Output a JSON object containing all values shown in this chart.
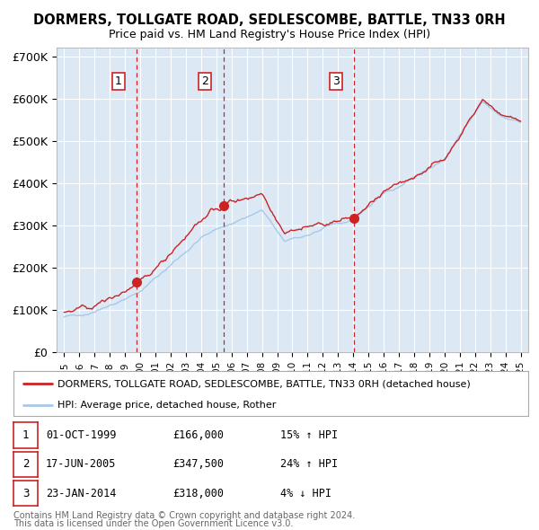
{
  "title": "DORMERS, TOLLGATE ROAD, SEDLESCOMBE, BATTLE, TN33 0RH",
  "subtitle": "Price paid vs. HM Land Registry's House Price Index (HPI)",
  "ylim": [
    0,
    720000
  ],
  "yticks": [
    0,
    100000,
    200000,
    300000,
    400000,
    500000,
    600000,
    700000
  ],
  "ytick_labels": [
    "£0",
    "£100K",
    "£200K",
    "£300K",
    "£400K",
    "£500K",
    "£600K",
    "£700K"
  ],
  "xlim_start": 1994.5,
  "xlim_end": 2025.5,
  "background_color": "#dce9f5",
  "grid_color": "#ffffff",
  "hpi_color": "#a8c8e8",
  "price_color": "#cc2222",
  "sale_dot_color": "#cc2222",
  "vline_color": "#cc2222",
  "sale_dates_year": [
    1999.75,
    2005.46,
    2014.06
  ],
  "sale_prices": [
    166000,
    347500,
    318000
  ],
  "sale_labels": [
    "1",
    "2",
    "3"
  ],
  "legend_price_label": "DORMERS, TOLLGATE ROAD, SEDLESCOMBE, BATTLE, TN33 0RH (detached house)",
  "legend_hpi_label": "HPI: Average price, detached house, Rother",
  "table_rows": [
    [
      "1",
      "01-OCT-1999",
      "£166,000",
      "15% ↑ HPI"
    ],
    [
      "2",
      "17-JUN-2005",
      "£347,500",
      "24% ↑ HPI"
    ],
    [
      "3",
      "23-JAN-2014",
      "£318,000",
      "4% ↓ HPI"
    ]
  ],
  "footer_line1": "Contains HM Land Registry data © Crown copyright and database right 2024.",
  "footer_line2": "This data is licensed under the Open Government Licence v3.0."
}
